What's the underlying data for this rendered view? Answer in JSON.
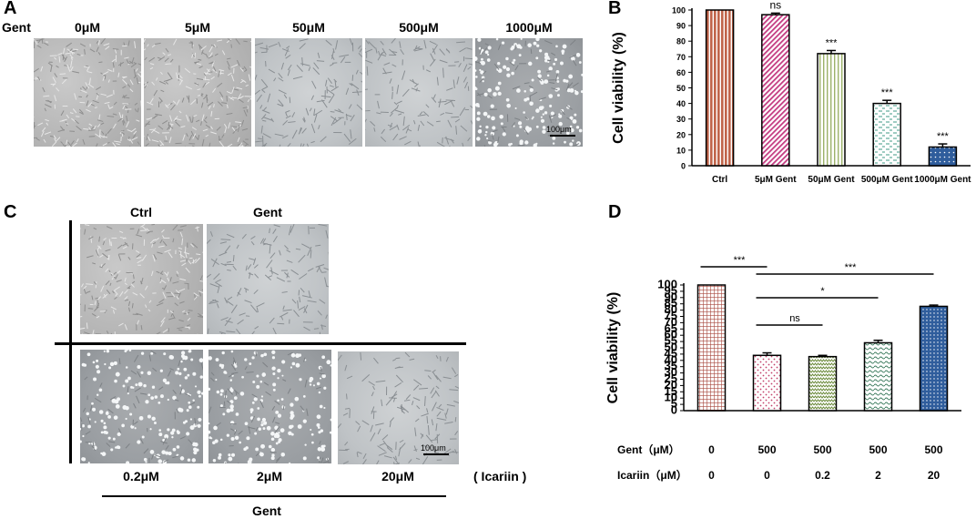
{
  "panels": {
    "A": {
      "letter": "A",
      "row_label": "Gent",
      "images": [
        {
          "label": "0μM",
          "texture": "dense"
        },
        {
          "label": "5μM",
          "texture": "dense"
        },
        {
          "label": "50μM",
          "texture": "sparse"
        },
        {
          "label": "500μM",
          "texture": "sparse"
        },
        {
          "label": "1000μM",
          "texture": "dead"
        }
      ],
      "scale_bar": "100μm"
    },
    "C": {
      "letter": "C",
      "top_labels": [
        "Ctrl",
        "Gent"
      ],
      "bottom_labels": [
        "0.2μM",
        "2μM",
        "20μM"
      ],
      "treatment_label": "( Icariin )",
      "group_label": "Gent",
      "scale_bar": "100μm"
    }
  },
  "chart_data": [
    {
      "panel": "B",
      "type": "bar",
      "categories": [
        "Ctrl",
        "5μM Gent",
        "50μM Gent",
        "500μM Gent",
        "1000μM Gent"
      ],
      "values": [
        100,
        97,
        72,
        40,
        12
      ],
      "errors": [
        0,
        1,
        2,
        2,
        2
      ],
      "significance": [
        "",
        "ns",
        "***",
        "***",
        "***"
      ],
      "ylabel": "Cell viability  (%)",
      "ylim": [
        0,
        100
      ],
      "yticks": [
        0,
        10,
        20,
        30,
        40,
        50,
        60,
        70,
        80,
        90,
        100
      ],
      "colors": [
        "#c0644a",
        "#c43c82",
        "#9cb26a",
        "#3f9a86",
        "#2f5d9c"
      ],
      "patterns": [
        "vlines",
        "diag",
        "vlines-light",
        "dashes",
        "dots"
      ]
    },
    {
      "panel": "D",
      "type": "bar",
      "categories": [
        "1",
        "2",
        "3",
        "4",
        "5"
      ],
      "values": [
        100,
        44,
        43,
        54,
        83
      ],
      "errors": [
        0,
        2,
        1,
        2,
        1
      ],
      "ylabel": "Cell viability  (%)",
      "ylim": [
        0,
        100
      ],
      "yticks": [
        0,
        5,
        10,
        15,
        20,
        25,
        30,
        35,
        40,
        45,
        50,
        55,
        60,
        65,
        70,
        75,
        80,
        85,
        90,
        95,
        100
      ],
      "colors": [
        "#a8483e",
        "#c2406a",
        "#6b8a3a",
        "#3a7a5c",
        "#2f5d9c"
      ],
      "patterns": [
        "grid",
        "dots-sparse",
        "zigzag",
        "waves",
        "dense-dots"
      ],
      "brackets": [
        {
          "from": 0,
          "to": 1,
          "label": "***"
        },
        {
          "from": 1,
          "to": 4,
          "label": "***"
        },
        {
          "from": 1,
          "to": 3,
          "label": "*"
        },
        {
          "from": 1,
          "to": 2,
          "label": "ns"
        }
      ],
      "table": {
        "rows": [
          {
            "label": "Gent（μM）",
            "values": [
              "0",
              "500",
              "500",
              "500",
              "500"
            ]
          },
          {
            "label": "Icariin（μM）",
            "values": [
              "0",
              "0",
              "0.2",
              "2",
              "20"
            ]
          }
        ]
      }
    }
  ],
  "letters": {
    "B": "B",
    "D": "D"
  }
}
